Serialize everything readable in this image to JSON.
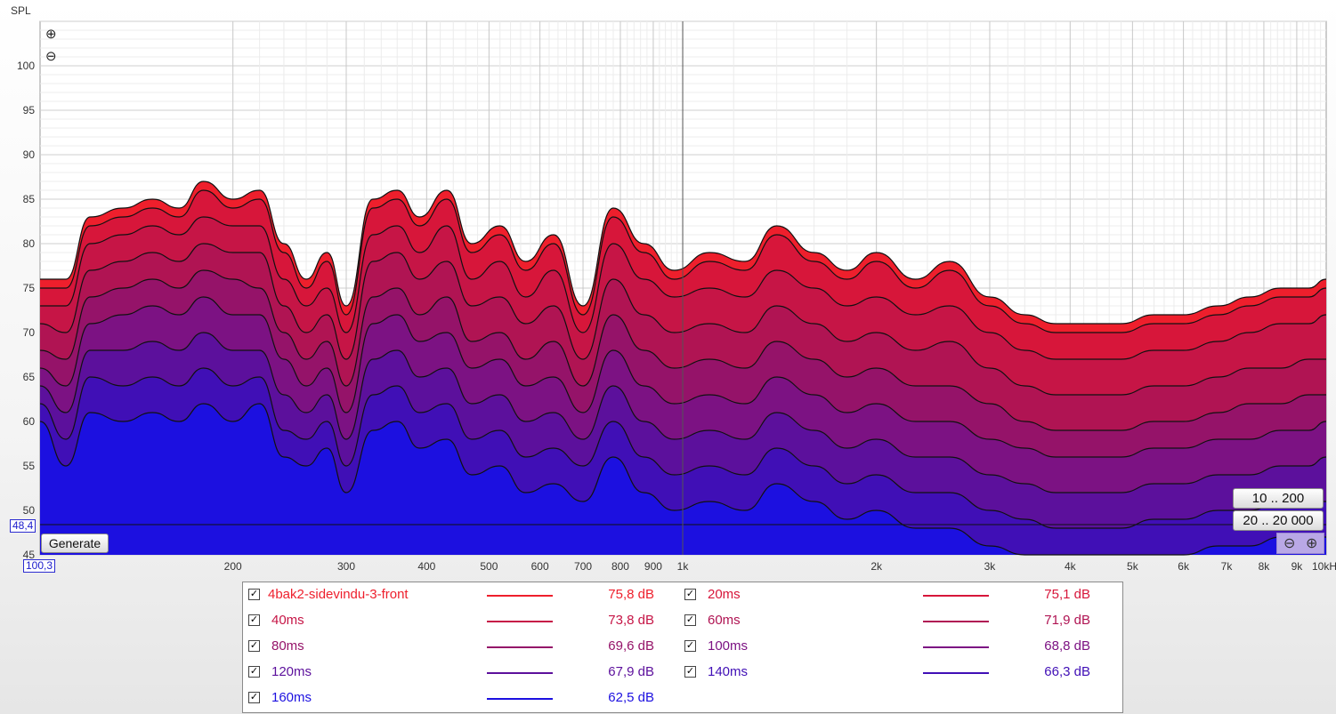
{
  "chart_data": {
    "type": "area",
    "ylabel": "SPL",
    "y_ticks": [
      "100",
      "95",
      "90",
      "85",
      "80",
      "75",
      "70",
      "65",
      "60",
      "55",
      "50",
      "45"
    ],
    "ylim": [
      45,
      105
    ],
    "x_scale": "log",
    "xlim": [
      100.3,
      10000
    ],
    "x_ticks": [
      {
        "f": 200,
        "label": "200"
      },
      {
        "f": 300,
        "label": "300"
      },
      {
        "f": 400,
        "label": "400"
      },
      {
        "f": 500,
        "label": "500"
      },
      {
        "f": 600,
        "label": "600"
      },
      {
        "f": 700,
        "label": "700"
      },
      {
        "f": 800,
        "label": "800"
      },
      {
        "f": 900,
        "label": "900"
      },
      {
        "f": 1000,
        "label": "1k"
      },
      {
        "f": 2000,
        "label": "2k"
      },
      {
        "f": 3000,
        "label": "3k"
      },
      {
        "f": 4000,
        "label": "4k"
      },
      {
        "f": 5000,
        "label": "5k"
      },
      {
        "f": 6000,
        "label": "6k"
      },
      {
        "f": 7000,
        "label": "7k"
      },
      {
        "f": 8000,
        "label": "8k"
      },
      {
        "f": 9000,
        "label": "9k"
      },
      {
        "f": 10000,
        "label": "10kHz"
      }
    ],
    "grid": true,
    "cursor_y_value": "48,4",
    "x_min_label": "100,3",
    "x_values": [
      100,
      110,
      120,
      135,
      150,
      165,
      180,
      200,
      220,
      240,
      260,
      280,
      300,
      330,
      360,
      390,
      430,
      470,
      520,
      570,
      630,
      700,
      780,
      870,
      970,
      1100,
      1250,
      1400,
      1600,
      1800,
      2000,
      2300,
      2600,
      3000,
      3400,
      3800,
      4300,
      4800,
      5400,
      6000,
      6800,
      7600,
      8500,
      9400,
      10000
    ],
    "series": [
      {
        "name": "4bak2-sidevindu-3-front",
        "color": "#ee1f2c",
        "level": "75,8 dB",
        "values": [
          76,
          76,
          83,
          84,
          85,
          84,
          87,
          85,
          86,
          80,
          76,
          79,
          73,
          85,
          86,
          83,
          86,
          80,
          82,
          78,
          81,
          73,
          84,
          80,
          77,
          79,
          78,
          82,
          79,
          77,
          79,
          76,
          78,
          74,
          72,
          71,
          71,
          71,
          72,
          72,
          73,
          74,
          75,
          75,
          76
        ]
      },
      {
        "name": "20ms",
        "color": "#d7163a",
        "level": "75,1 dB",
        "values": [
          75,
          75,
          82,
          83,
          84,
          83,
          86,
          84,
          85,
          79,
          75,
          78,
          72,
          84,
          85,
          82,
          85,
          79,
          81,
          77,
          80,
          72,
          83,
          79,
          76,
          78,
          77,
          81,
          78,
          76,
          78,
          75,
          77,
          73,
          71,
          70,
          70,
          70,
          71,
          71,
          72,
          73,
          74,
          74,
          75
        ]
      },
      {
        "name": "40ms",
        "color": "#c61546",
        "level": "73,8 dB",
        "values": [
          73,
          73,
          80,
          81,
          82,
          81,
          83,
          82,
          82,
          76,
          73,
          75,
          70,
          81,
          82,
          79,
          82,
          76,
          78,
          74,
          77,
          70,
          80,
          76,
          74,
          75,
          74,
          77,
          75,
          73,
          74,
          72,
          73,
          70,
          68,
          67,
          67,
          67,
          68,
          68,
          69,
          70,
          71,
          71,
          72
        ]
      },
      {
        "name": "60ms",
        "color": "#b01453",
        "level": "71,9 dB",
        "values": [
          71,
          70,
          77,
          78,
          79,
          78,
          80,
          79,
          79,
          73,
          70,
          72,
          67,
          78,
          79,
          76,
          78,
          73,
          74,
          71,
          73,
          67,
          76,
          72,
          70,
          71,
          70,
          73,
          71,
          69,
          70,
          68,
          69,
          66,
          64,
          63,
          63,
          63,
          64,
          64,
          65,
          66,
          66,
          67,
          67
        ]
      },
      {
        "name": "80ms",
        "color": "#951369",
        "level": "69,6 dB",
        "values": [
          68,
          67,
          74,
          75,
          76,
          75,
          77,
          76,
          75,
          70,
          67,
          69,
          64,
          74,
          75,
          72,
          74,
          69,
          70,
          67,
          69,
          64,
          72,
          68,
          66,
          67,
          66,
          69,
          67,
          65,
          66,
          64,
          64,
          62,
          60,
          59,
          59,
          59,
          60,
          60,
          61,
          62,
          62,
          63,
          63
        ]
      },
      {
        "name": "100ms",
        "color": "#7c1283",
        "level": "68,8 dB",
        "values": [
          66,
          64,
          71,
          72,
          73,
          72,
          74,
          72,
          72,
          67,
          64,
          66,
          61,
          71,
          72,
          69,
          70,
          66,
          67,
          64,
          65,
          61,
          68,
          64,
          62,
          63,
          62,
          65,
          63,
          61,
          62,
          60,
          60,
          58,
          57,
          56,
          56,
          56,
          57,
          57,
          58,
          58,
          59,
          59,
          60
        ]
      },
      {
        "name": "120ms",
        "color": "#5c109c",
        "level": "67,9 dB",
        "values": [
          64,
          61,
          68,
          68,
          69,
          68,
          70,
          68,
          68,
          63,
          61,
          63,
          58,
          67,
          68,
          65,
          66,
          62,
          63,
          60,
          61,
          58,
          64,
          60,
          58,
          59,
          58,
          61,
          59,
          57,
          58,
          56,
          56,
          54,
          53,
          52,
          52,
          52,
          53,
          53,
          54,
          54,
          55,
          55,
          56
        ]
      },
      {
        "name": "140ms",
        "color": "#400fb6",
        "level": "66,3 dB",
        "values": [
          62,
          58,
          65,
          64,
          65,
          64,
          66,
          64,
          65,
          59,
          58,
          60,
          55,
          63,
          64,
          61,
          62,
          58,
          59,
          56,
          57,
          55,
          60,
          56,
          54,
          55,
          54,
          57,
          55,
          53,
          54,
          52,
          52,
          50,
          49,
          48,
          48,
          48,
          49,
          49,
          50,
          50,
          51,
          51,
          51
        ]
      },
      {
        "name": "160ms",
        "color": "#1c10e0",
        "level": "62,5 dB",
        "values": [
          60,
          55,
          61,
          60,
          61,
          60,
          62,
          60,
          62,
          56,
          55,
          57,
          52,
          59,
          60,
          57,
          58,
          54,
          55,
          52,
          53,
          51,
          56,
          52,
          50,
          51,
          50,
          53,
          51,
          49,
          50,
          48,
          48,
          46,
          45,
          45,
          45,
          45,
          45,
          45,
          46,
          46,
          47,
          47,
          47
        ]
      }
    ]
  },
  "controls": {
    "generate_label": "Generate",
    "range_a": "10 .. 200",
    "range_b": "20 .. 20 000",
    "zoom_in_glyph": "⊕",
    "zoom_out_glyph": "⊖"
  },
  "legend": {
    "check_glyph": "✓"
  }
}
